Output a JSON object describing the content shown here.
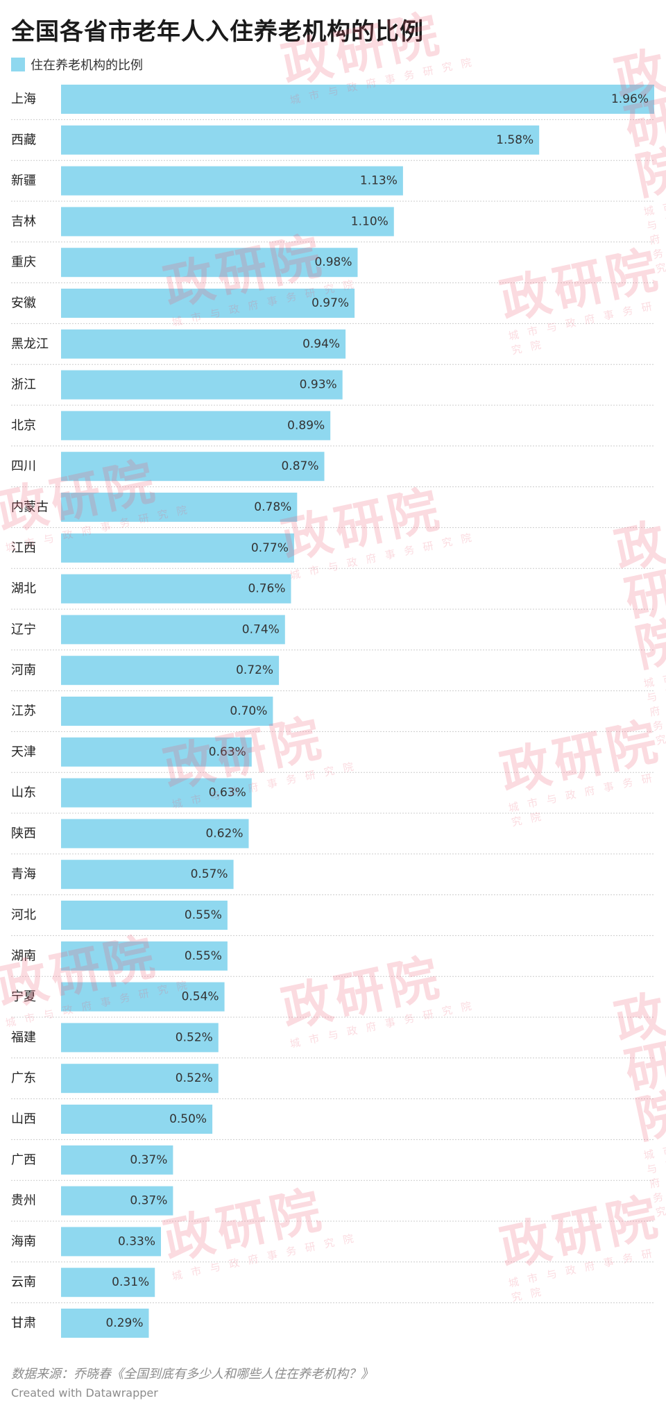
{
  "chart_data": {
    "type": "bar",
    "orientation": "horizontal",
    "title": "全国各省市老年人入住养老机构的比例",
    "xlim": [
      0,
      1.96
    ],
    "grid": false,
    "legend_position": "top-left",
    "series": [
      {
        "name": "住在养老机构的比例",
        "color": "#8fd8ef"
      }
    ],
    "categories": [
      "上海",
      "西藏",
      "新疆",
      "吉林",
      "重庆",
      "安徽",
      "黑龙江",
      "浙江",
      "北京",
      "四川",
      "内蒙古",
      "江西",
      "湖北",
      "辽宁",
      "河南",
      "江苏",
      "天津",
      "山东",
      "陕西",
      "青海",
      "河北",
      "湖南",
      "宁夏",
      "福建",
      "广东",
      "山西",
      "广西",
      "贵州",
      "海南",
      "云南",
      "甘肃"
    ],
    "values": [
      1.96,
      1.58,
      1.13,
      1.1,
      0.98,
      0.97,
      0.94,
      0.93,
      0.89,
      0.87,
      0.78,
      0.77,
      0.76,
      0.74,
      0.72,
      0.7,
      0.63,
      0.63,
      0.62,
      0.57,
      0.55,
      0.55,
      0.54,
      0.52,
      0.52,
      0.5,
      0.37,
      0.37,
      0.33,
      0.31,
      0.29
    ],
    "value_labels": [
      "1.96%",
      "1.58%",
      "1.13%",
      "1.10%",
      "0.98%",
      "0.97%",
      "0.94%",
      "0.93%",
      "0.89%",
      "0.87%",
      "0.78%",
      "0.77%",
      "0.76%",
      "0.74%",
      "0.72%",
      "0.70%",
      "0.63%",
      "0.63%",
      "0.62%",
      "0.57%",
      "0.55%",
      "0.55%",
      "0.54%",
      "0.52%",
      "0.52%",
      "0.50%",
      "0.37%",
      "0.37%",
      "0.33%",
      "0.31%",
      "0.29%"
    ]
  },
  "footer": {
    "source": "数据来源：乔晓春《全国到底有多少人和哪些人住在养老机构？》",
    "credit": "Created with Datawrapper"
  },
  "watermark": {
    "text": "政研院",
    "subtext": "城市与政府事务研究院"
  },
  "colors": {
    "bar": "#8fd8ef",
    "watermark": "#ec5c70"
  }
}
